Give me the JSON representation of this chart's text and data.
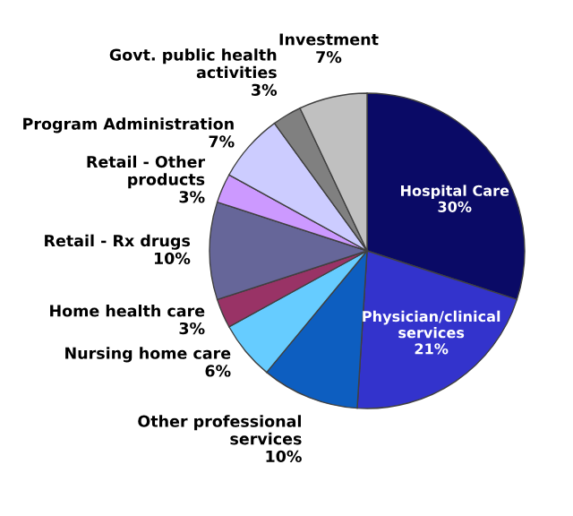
{
  "chart_data": {
    "type": "pie",
    "categories": [
      "Hospital Care",
      "Physician/clinical services",
      "Other professional services",
      "Nursing home care",
      "Home health care",
      "Retail - Rx drugs",
      "Retail - Other products",
      "Program Administration",
      "Govt. public health activities",
      "Investment"
    ],
    "values": [
      30,
      21,
      10,
      6,
      3,
      10,
      3,
      7,
      3,
      7
    ],
    "value_labels": [
      "30%",
      "21%",
      "10%",
      "6%",
      "3%",
      "10%",
      "3%",
      "7%",
      "3%",
      "7%"
    ],
    "colors": [
      "#0a0a66",
      "#3333cc",
      "#0d5ec0",
      "#66ccff",
      "#993366",
      "#666699",
      "#cc99ff",
      "#ccccff",
      "#808080",
      "#c0c0c0"
    ],
    "legend": false
  }
}
